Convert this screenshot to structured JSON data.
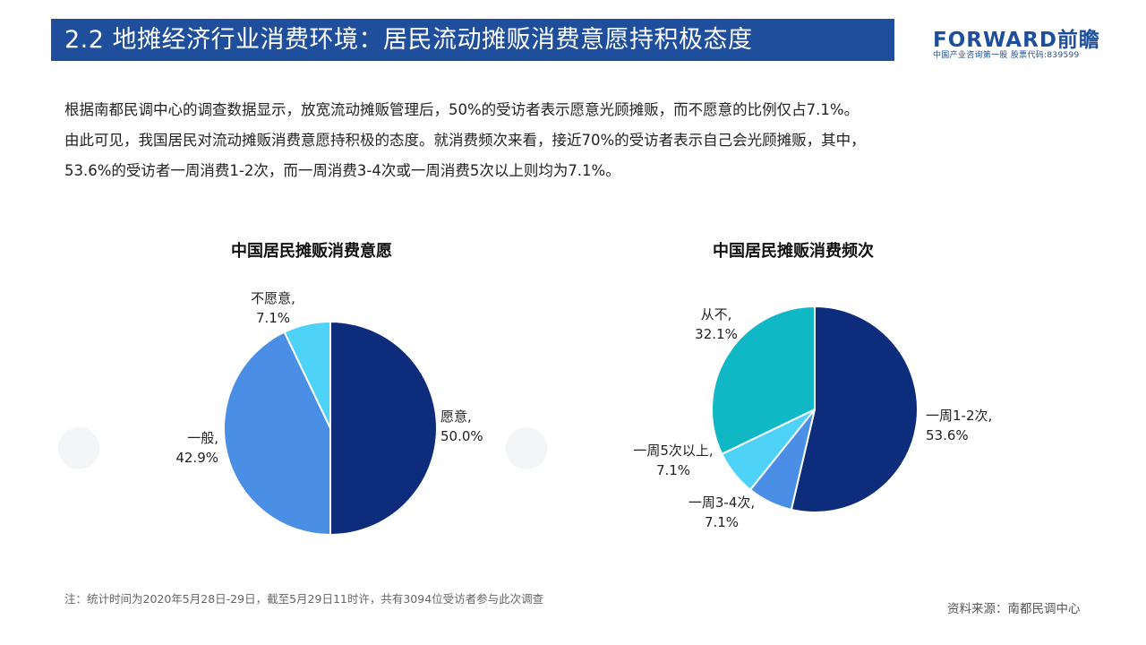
{
  "header": {
    "title": "2.2  地摊经济行业消费环境：居民流动摊贩消费意愿持积极态度"
  },
  "logo": {
    "main": "FORWARD前瞻",
    "sub": "中国产业咨询第一股  股票代码:839599"
  },
  "body": {
    "paragraphs": [
      "根据南都民调中心的调查数据显示，放宽流动摊贩管理后，50%的受访者表示愿意光顾摊贩，而不愿意的比例仅占7.1%。",
      "由此可见，我国居民对流动摊贩消费意愿持积极的态度。就消费频次来看，接近70%的受访者表示自己会光顾摊贩，其中，",
      "53.6%的受访者一周消费1-2次，而一周消费3-4次或一周消费5次以上则均为7.1%。"
    ]
  },
  "chart_data": [
    {
      "type": "pie",
      "title": "中国居民摊贩消费意愿",
      "slices": [
        {
          "label": "愿意,",
          "pct_label": "50.0%",
          "value": 50.0,
          "color": "#0d2d7c"
        },
        {
          "label": "一般,",
          "pct_label": "42.9%",
          "value": 42.9,
          "color": "#4a8ee6"
        },
        {
          "label": "不愿意,",
          "pct_label": "7.1%",
          "value": 7.1,
          "color": "#4fd2f7"
        }
      ]
    },
    {
      "type": "pie",
      "title": "中国居民摊贩消费频次",
      "slices": [
        {
          "label": "一周1-2次,",
          "pct_label": "53.6%",
          "value": 53.6,
          "color": "#0d2d7c"
        },
        {
          "label": "一周3-4次,",
          "pct_label": "7.1%",
          "value": 7.1,
          "color": "#4a8ee6"
        },
        {
          "label": "一周5次以上,",
          "pct_label": "7.1%",
          "value": 7.1,
          "color": "#4fd2f7"
        },
        {
          "label": "从不,",
          "pct_label": "32.1%",
          "value": 32.1,
          "color": "#0fb8c4"
        }
      ]
    }
  ],
  "footnote": "注：统计时间为2020年5月28日-29日，截至5月29日11时许，共有3094位受访者参与此次调查",
  "source": "资料来源：南都民调中心"
}
